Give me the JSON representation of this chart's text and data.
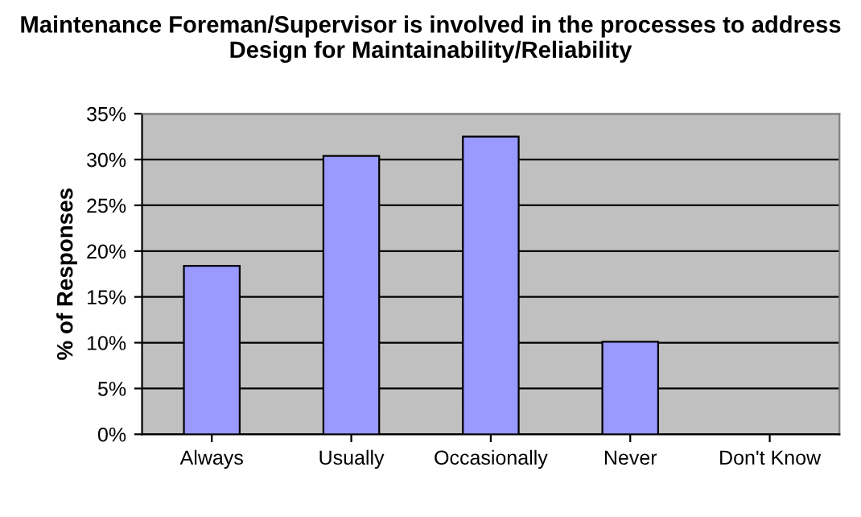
{
  "chart_data": {
    "type": "bar",
    "title": "Maintenance Foreman/Supervisor is involved in the processes to address Design for Maintainability/Reliability",
    "ylabel": "% of Responses",
    "categories": [
      "Always",
      "Usually",
      "Occasionally",
      "Never",
      "Don't Know"
    ],
    "values": [
      18.4,
      30.4,
      32.5,
      10.1,
      0
    ],
    "color": "#9999ff",
    "ylim": [
      0,
      35
    ],
    "yticks": [
      {
        "value": 0,
        "label": "0%"
      },
      {
        "value": 5,
        "label": "5%"
      },
      {
        "value": 10,
        "label": "10%"
      },
      {
        "value": 15,
        "label": "15%"
      },
      {
        "value": 20,
        "label": "20%"
      },
      {
        "value": 25,
        "label": "25%"
      },
      {
        "value": 30,
        "label": "30%"
      },
      {
        "value": 35,
        "label": "35%"
      }
    ],
    "grid": "y",
    "legend": false
  }
}
